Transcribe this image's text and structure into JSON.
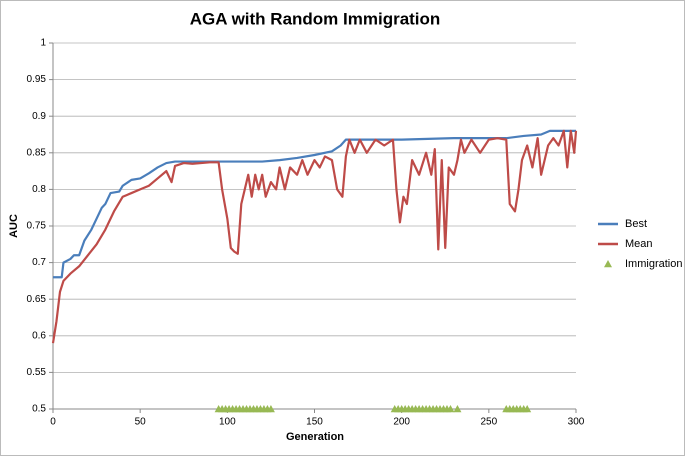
{
  "chart_data": {
    "type": "line",
    "title": "AGA with Random Immigration",
    "x_label": "Generation",
    "y_label": "AUC",
    "xlim": [
      0,
      300
    ],
    "xticks": [
      0,
      50,
      100,
      150,
      200,
      250,
      300
    ],
    "ylim": [
      0.5,
      1
    ],
    "yticks": [
      0.5,
      0.55,
      0.6,
      0.65,
      0.7,
      0.75,
      0.8,
      0.85,
      0.9,
      0.95,
      1
    ],
    "grid": true,
    "legend": "right",
    "series": [
      {
        "name": "Best",
        "color": "#4a7ebb",
        "kind": "line",
        "x": [
          0,
          5,
          6,
          10,
          12,
          15,
          18,
          22,
          25,
          28,
          30,
          33,
          38,
          40,
          45,
          50,
          55,
          60,
          65,
          70,
          100,
          120,
          130,
          140,
          150,
          160,
          165,
          168,
          200,
          230,
          260,
          270,
          280,
          285,
          300
        ],
        "values": [
          0.68,
          0.68,
          0.7,
          0.705,
          0.71,
          0.71,
          0.73,
          0.745,
          0.76,
          0.775,
          0.78,
          0.795,
          0.797,
          0.805,
          0.813,
          0.815,
          0.822,
          0.83,
          0.836,
          0.838,
          0.838,
          0.838,
          0.84,
          0.843,
          0.847,
          0.852,
          0.86,
          0.868,
          0.868,
          0.87,
          0.87,
          0.873,
          0.875,
          0.88,
          0.88
        ]
      },
      {
        "name": "Mean",
        "color": "#be4b48",
        "kind": "line",
        "x": [
          0,
          2,
          4,
          6,
          10,
          15,
          20,
          25,
          30,
          35,
          40,
          45,
          50,
          55,
          60,
          65,
          68,
          70,
          75,
          80,
          90,
          95,
          97,
          100,
          102,
          104,
          106,
          108,
          110,
          112,
          114,
          116,
          118,
          120,
          122,
          125,
          128,
          130,
          133,
          136,
          140,
          143,
          146,
          150,
          153,
          156,
          160,
          163,
          166,
          168,
          170,
          173,
          176,
          180,
          185,
          190,
          195,
          197,
          199,
          201,
          203,
          206,
          210,
          214,
          217,
          219,
          221,
          223,
          225,
          227,
          230,
          232,
          234,
          236,
          240,
          245,
          250,
          255,
          260,
          262,
          265,
          267,
          269,
          272,
          275,
          278,
          280,
          284,
          287,
          290,
          293,
          295,
          297,
          299,
          300
        ],
        "values": [
          0.59,
          0.62,
          0.66,
          0.675,
          0.685,
          0.695,
          0.71,
          0.725,
          0.745,
          0.77,
          0.79,
          0.795,
          0.8,
          0.805,
          0.815,
          0.825,
          0.81,
          0.832,
          0.836,
          0.835,
          0.837,
          0.837,
          0.8,
          0.76,
          0.72,
          0.715,
          0.712,
          0.78,
          0.8,
          0.82,
          0.79,
          0.82,
          0.8,
          0.82,
          0.79,
          0.81,
          0.8,
          0.83,
          0.8,
          0.83,
          0.82,
          0.84,
          0.82,
          0.84,
          0.83,
          0.845,
          0.84,
          0.8,
          0.79,
          0.845,
          0.868,
          0.85,
          0.868,
          0.85,
          0.868,
          0.86,
          0.868,
          0.8,
          0.755,
          0.79,
          0.78,
          0.84,
          0.82,
          0.85,
          0.82,
          0.855,
          0.718,
          0.84,
          0.72,
          0.83,
          0.82,
          0.84,
          0.868,
          0.85,
          0.868,
          0.85,
          0.868,
          0.87,
          0.868,
          0.78,
          0.77,
          0.8,
          0.84,
          0.86,
          0.83,
          0.87,
          0.82,
          0.86,
          0.87,
          0.86,
          0.88,
          0.83,
          0.88,
          0.85,
          0.88
        ]
      },
      {
        "name": "Immigration",
        "color": "#98b954",
        "kind": "scatter",
        "x": [
          95,
          97,
          99,
          101,
          103,
          105,
          107,
          109,
          111,
          113,
          115,
          117,
          119,
          121,
          123,
          125,
          196,
          198,
          200,
          202,
          204,
          206,
          208,
          210,
          212,
          214,
          216,
          218,
          220,
          222,
          224,
          226,
          228,
          232,
          260,
          262,
          264,
          266,
          268,
          270,
          272
        ],
        "values": [
          0.5,
          0.5,
          0.5,
          0.5,
          0.5,
          0.5,
          0.5,
          0.5,
          0.5,
          0.5,
          0.5,
          0.5,
          0.5,
          0.5,
          0.5,
          0.5,
          0.5,
          0.5,
          0.5,
          0.5,
          0.5,
          0.5,
          0.5,
          0.5,
          0.5,
          0.5,
          0.5,
          0.5,
          0.5,
          0.5,
          0.5,
          0.5,
          0.5,
          0.5,
          0.5,
          0.5,
          0.5,
          0.5,
          0.5,
          0.5,
          0.5
        ]
      }
    ]
  }
}
